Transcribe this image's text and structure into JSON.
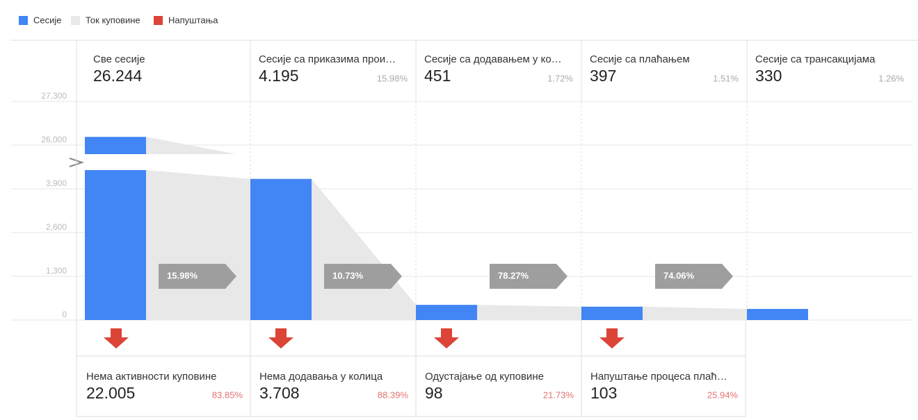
{
  "chart_data": {
    "type": "funnel",
    "legend": [
      {
        "name": "Сесије",
        "color": "#4285f4"
      },
      {
        "name": "Ток куповине",
        "color": "#e8e8e8"
      },
      {
        "name": "Напуштања",
        "color": "#db4437"
      }
    ],
    "ylim": [
      0,
      27300
    ],
    "yticks": [
      0,
      {
        "value": 1300,
        "label": "1,300"
      },
      {
        "value": 2600,
        "label": "2,600"
      },
      {
        "value": 3900,
        "label": "3,900"
      },
      {
        "value": 26000,
        "label": "26,000"
      },
      {
        "value": 27300,
        "label": "27,300"
      }
    ],
    "stages": {
      "names": [
        "Све сесије",
        "Сесије са приказима прои…",
        "Сесије са додавањем у ко…",
        "Сесије са плаћањем",
        "Сесије са трансакцијама"
      ],
      "values": [
        26244,
        4195,
        451,
        397,
        330
      ],
      "value_labels": [
        "26.244",
        "4.195",
        "451",
        "397",
        "330"
      ],
      "shares": [
        null,
        15.98,
        1.72,
        1.51,
        1.26
      ],
      "share_labels": [
        null,
        "15.98%",
        "1.72%",
        "1.51%",
        "1.26%"
      ]
    },
    "rates": [
      15.98,
      10.73,
      78.27,
      74.06
    ],
    "rate_labels": [
      "15.98%",
      "10.73%",
      "78.27%",
      "74.06%"
    ],
    "abandonments": {
      "names": [
        "Нема активности куповине",
        "Нема додавања у колица",
        "Одустајање од куповине",
        "Напуштање процеса плаћ…"
      ],
      "values": [
        22005,
        3708,
        98,
        103
      ],
      "value_labels": [
        "22.005",
        "3.708",
        "98",
        "103"
      ],
      "shares": [
        83.85,
        88.39,
        21.73,
        25.94
      ],
      "share_labels": [
        "83.85%",
        "88.39%",
        "21.73%",
        "25.94%"
      ]
    }
  }
}
